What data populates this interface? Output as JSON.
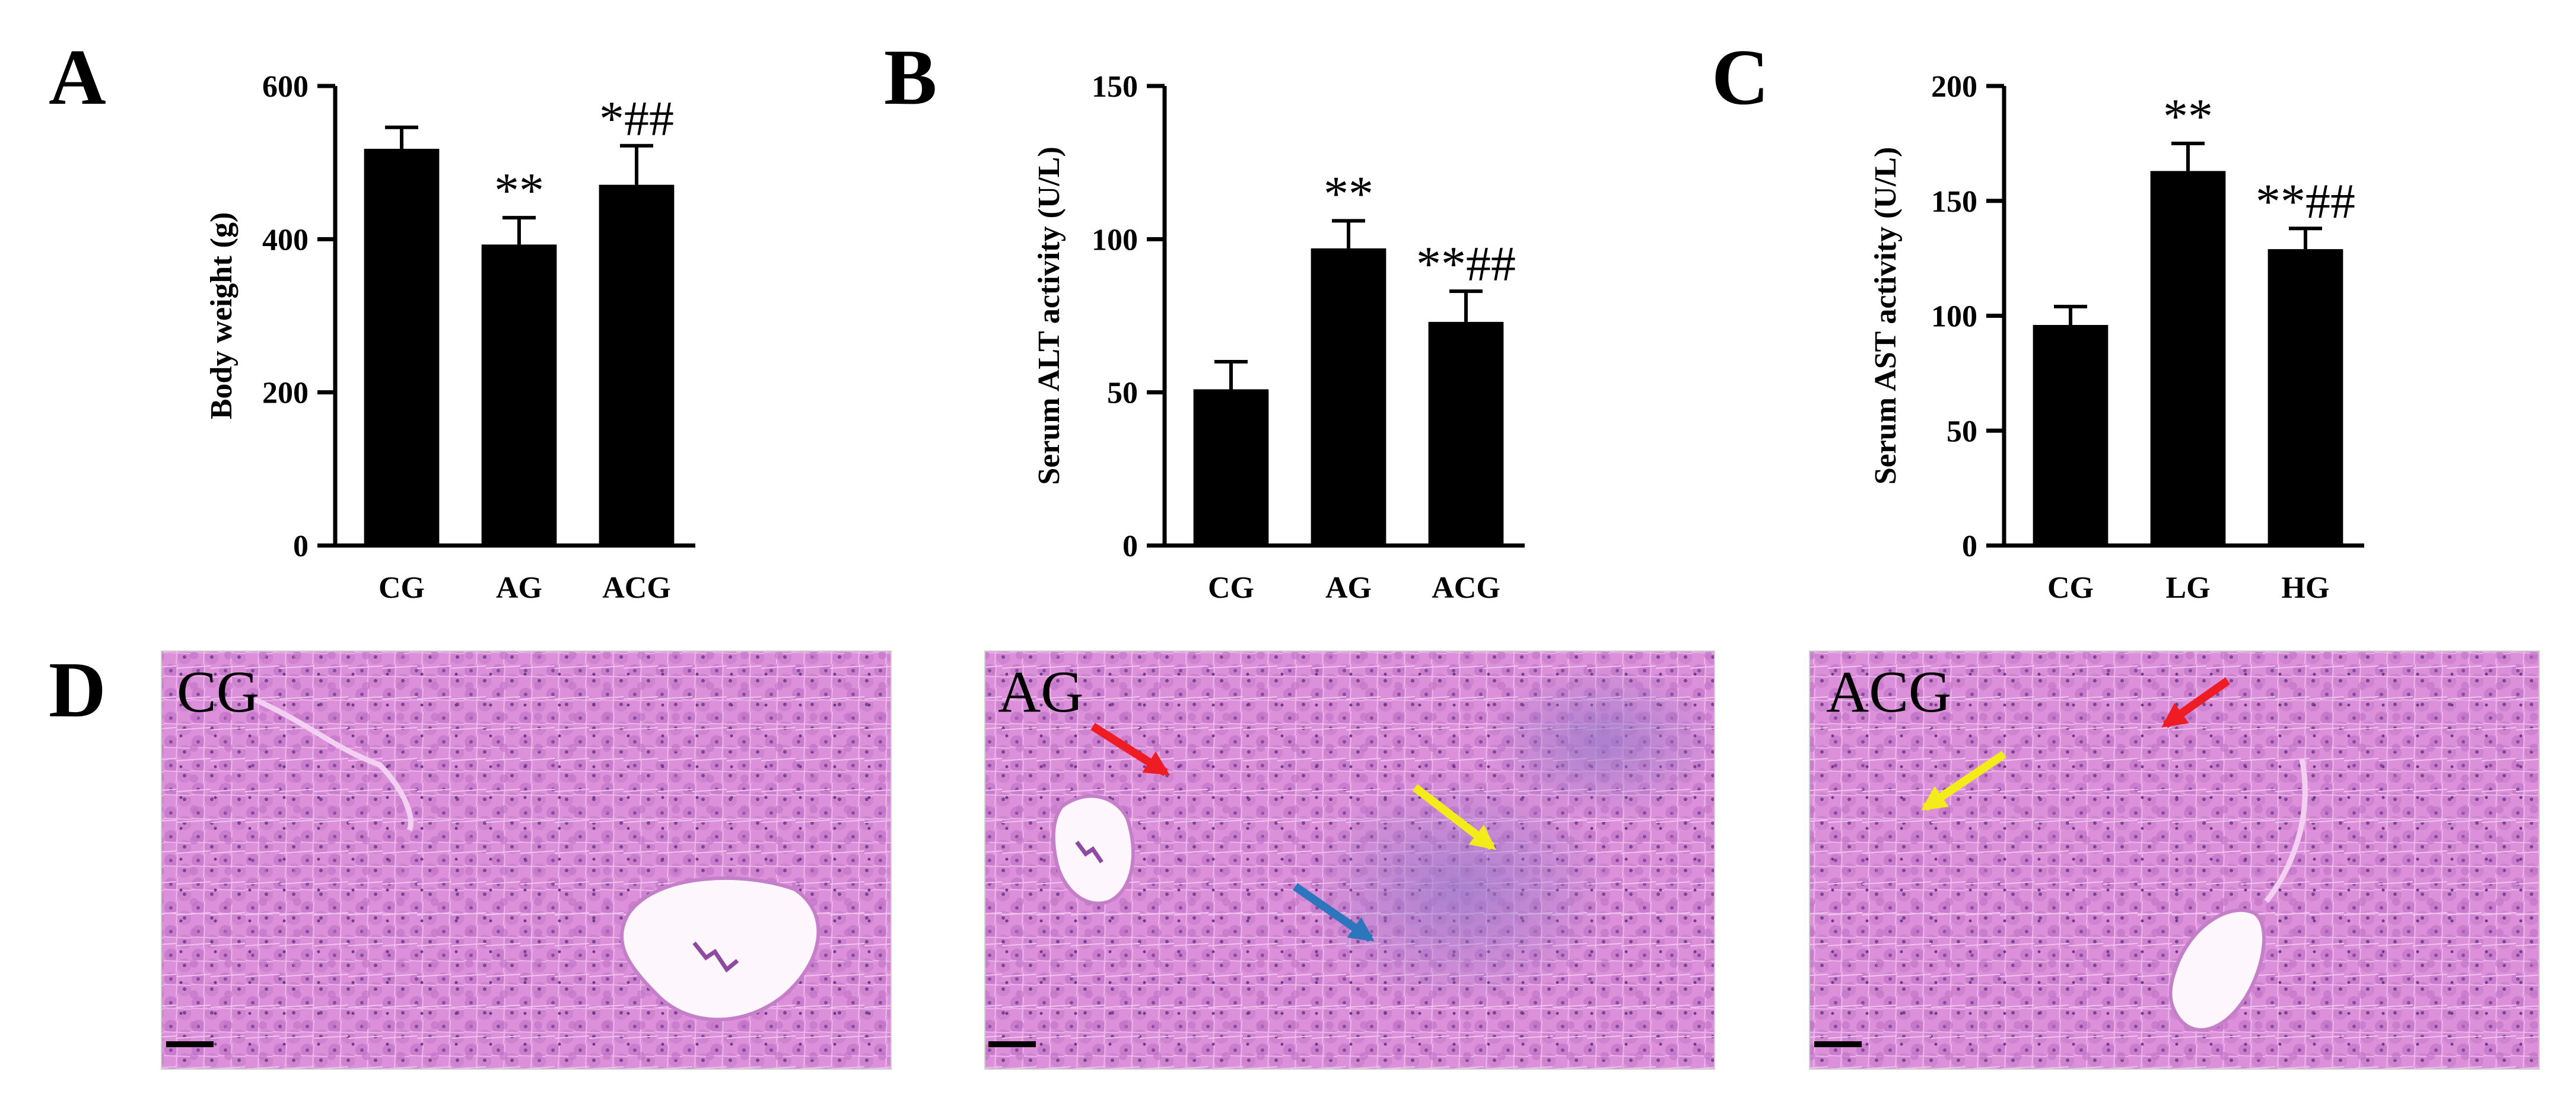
{
  "panels": [
    "A",
    "B",
    "C",
    "D"
  ],
  "chart_data": [
    {
      "panel": "A",
      "type": "bar",
      "title": "",
      "xlabel": "",
      "ylabel": "Body weight (g)",
      "ylim": [
        0,
        600
      ],
      "yticks": [
        0,
        200,
        400,
        600
      ],
      "categories": [
        "CG",
        "AG",
        "ACG"
      ],
      "values": [
        518,
        393,
        471
      ],
      "errors": [
        28,
        35,
        51
      ],
      "annotations": [
        "",
        "**",
        "*##"
      ],
      "bar_color": "#000000"
    },
    {
      "panel": "B",
      "type": "bar",
      "title": "",
      "xlabel": "",
      "ylabel": "Serum ALT activity (U/L)",
      "ylim": [
        0,
        150
      ],
      "yticks": [
        0,
        50,
        100,
        150
      ],
      "categories": [
        "CG",
        "AG",
        "ACG"
      ],
      "values": [
        51,
        97,
        73
      ],
      "errors": [
        9,
        9,
        10
      ],
      "annotations": [
        "",
        "**",
        "**##"
      ],
      "bar_color": "#000000"
    },
    {
      "panel": "C",
      "type": "bar",
      "title": "",
      "xlabel": "",
      "ylabel": "Serum AST activity (U/L)",
      "ylim": [
        0,
        200
      ],
      "yticks": [
        0,
        50,
        100,
        150,
        200
      ],
      "categories": [
        "CG",
        "LG",
        "HG"
      ],
      "values": [
        96,
        163,
        129
      ],
      "errors": [
        8,
        12,
        9
      ],
      "annotations": [
        "",
        "**",
        "**##"
      ],
      "bar_color": "#000000"
    }
  ],
  "micrographs": [
    {
      "label": "CG",
      "tissue_color": "#d98ad8"
    },
    {
      "label": "AG",
      "tissue_color": "#d98ad8"
    },
    {
      "label": "ACG",
      "tissue_color": "#d98ad8"
    }
  ],
  "arrow_colors": {
    "red": "#ee1c24",
    "yellow": "#f4ec1a",
    "blue": "#2d76bd"
  }
}
